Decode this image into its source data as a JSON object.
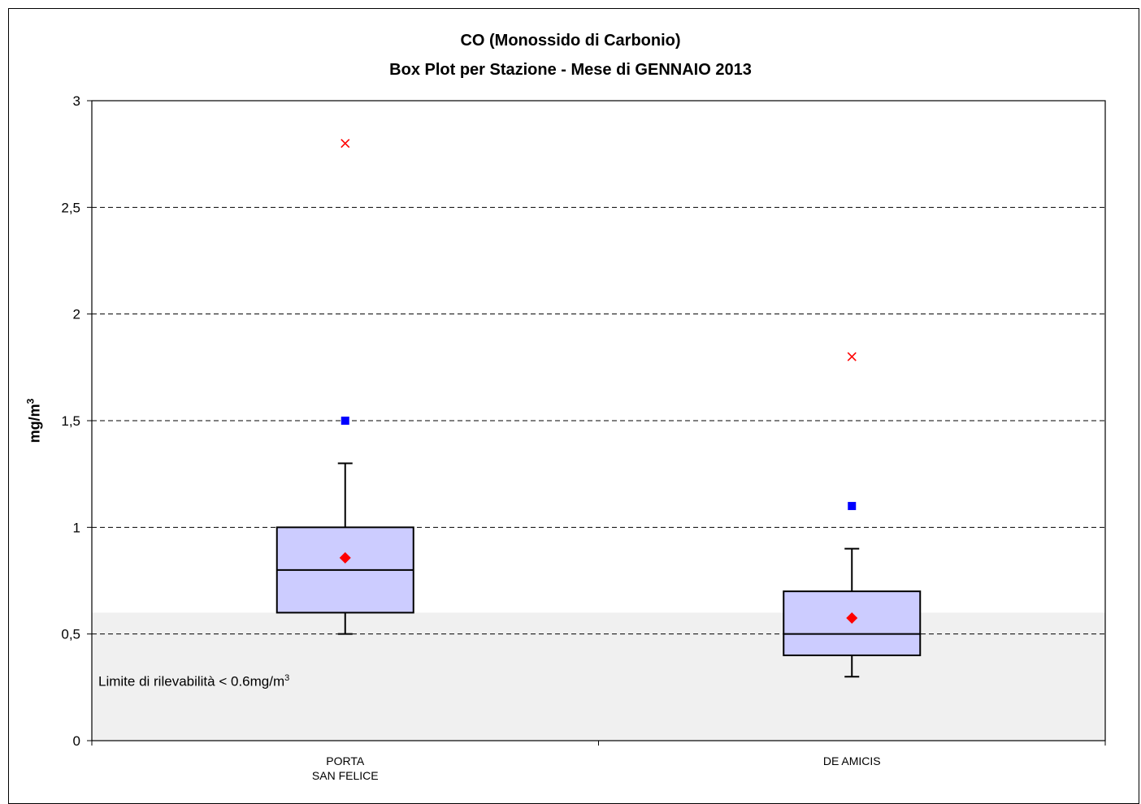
{
  "chart_data": {
    "type": "box",
    "title": "CO (Monossido di Carbonio)",
    "subtitle": "Box Plot per Stazione - Mese di GENNAIO 2013",
    "ylabel_text": "mg/m",
    "ylabel_sup": "3",
    "ylim": [
      0,
      3
    ],
    "yticks": [
      {
        "value": 0,
        "label": "0"
      },
      {
        "value": 0.5,
        "label": "0,5"
      },
      {
        "value": 1,
        "label": "1"
      },
      {
        "value": 1.5,
        "label": "1,5"
      },
      {
        "value": 2,
        "label": "2"
      },
      {
        "value": 2.5,
        "label": "2,5"
      },
      {
        "value": 3,
        "label": "3"
      }
    ],
    "grid": true,
    "detection_limit": {
      "value": 0.6,
      "label_text": "Limite di rilevabilità < 0.6mg/m",
      "label_sup": "3",
      "color": "#f0f0f0"
    },
    "colors": {
      "box_fill": "#ccccff",
      "mean": "#ff0000",
      "max": "#0000ff",
      "outlier": "#ff0000"
    },
    "stations": [
      {
        "label_lines": [
          "PORTA",
          "SAN FELICE"
        ],
        "whisker_low": 0.5,
        "q1": 0.6,
        "median": 0.8,
        "q3": 1.0,
        "whisker_high": 1.3,
        "mean": 0.857,
        "max_point": 1.5,
        "outlier": 2.8
      },
      {
        "label_lines": [
          "DE AMICIS"
        ],
        "whisker_low": 0.3,
        "q1": 0.4,
        "median": 0.5,
        "q3": 0.7,
        "whisker_high": 0.9,
        "mean": 0.575,
        "max_point": 1.1,
        "outlier": 1.8
      }
    ]
  }
}
